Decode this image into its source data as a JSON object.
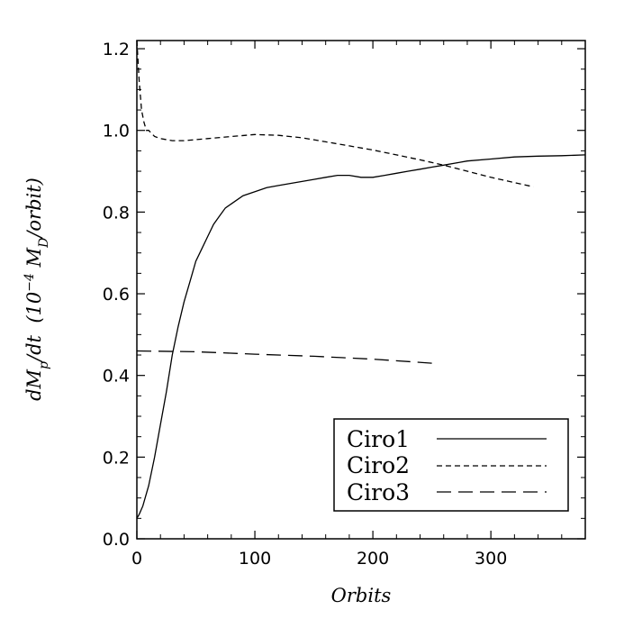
{
  "chart_data": {
    "type": "line",
    "xlabel": "Orbits",
    "ylabel": {
      "prefix": "dM",
      "prefix_sub": "p",
      "mid": "/dt  (10",
      "exp": "−4",
      "mass": " M",
      "mass_sub": "D",
      "suffix": "/orbit)"
    },
    "xlim": [
      0,
      380
    ],
    "ylim": [
      0,
      1.22
    ],
    "x_ticks": [
      0,
      100,
      200,
      300
    ],
    "x_tick_labels": [
      "0",
      "100",
      "200",
      "300"
    ],
    "y_ticks": [
      0,
      0.2,
      0.4,
      0.6,
      0.8,
      1.0,
      1.2
    ],
    "y_tick_labels": [
      "0.0",
      "0.2",
      "0.4",
      "0.6",
      "0.8",
      "1.0",
      "1.2"
    ],
    "grid": false,
    "legend_position": "bottom-right",
    "series": [
      {
        "name": "Ciro1",
        "dash": "solid",
        "x": [
          0,
          2,
          5,
          8,
          10,
          15,
          20,
          25,
          30,
          35,
          40,
          45,
          50,
          55,
          60,
          65,
          70,
          75,
          80,
          90,
          100,
          110,
          120,
          130,
          140,
          150,
          160,
          170,
          180,
          190,
          200,
          210,
          220,
          230,
          240,
          250,
          260,
          270,
          280,
          300,
          320,
          340,
          360,
          380
        ],
        "y": [
          0.05,
          0.06,
          0.08,
          0.11,
          0.13,
          0.2,
          0.28,
          0.36,
          0.45,
          0.52,
          0.58,
          0.63,
          0.68,
          0.71,
          0.74,
          0.77,
          0.79,
          0.81,
          0.82,
          0.84,
          0.85,
          0.86,
          0.865,
          0.87,
          0.875,
          0.88,
          0.885,
          0.89,
          0.89,
          0.885,
          0.885,
          0.89,
          0.895,
          0.9,
          0.905,
          0.91,
          0.915,
          0.92,
          0.925,
          0.93,
          0.935,
          0.937,
          0.938,
          0.94
        ]
      },
      {
        "name": "Ciro2",
        "dash": "short",
        "x": [
          0,
          2,
          4,
          6,
          8,
          10,
          15,
          20,
          30,
          40,
          60,
          80,
          100,
          120,
          140,
          160,
          180,
          200,
          220,
          240,
          260,
          280,
          300,
          320,
          336
        ],
        "y": [
          1.22,
          1.12,
          1.05,
          1.02,
          1.0,
          1.0,
          0.985,
          0.98,
          0.975,
          0.975,
          0.98,
          0.985,
          0.99,
          0.988,
          0.982,
          0.972,
          0.962,
          0.952,
          0.94,
          0.928,
          0.915,
          0.9,
          0.885,
          0.872,
          0.862
        ]
      },
      {
        "name": "Ciro3",
        "dash": "long",
        "x": [
          0,
          50,
          100,
          150,
          200,
          250
        ],
        "y": [
          0.46,
          0.458,
          0.452,
          0.447,
          0.44,
          0.43
        ]
      }
    ]
  }
}
